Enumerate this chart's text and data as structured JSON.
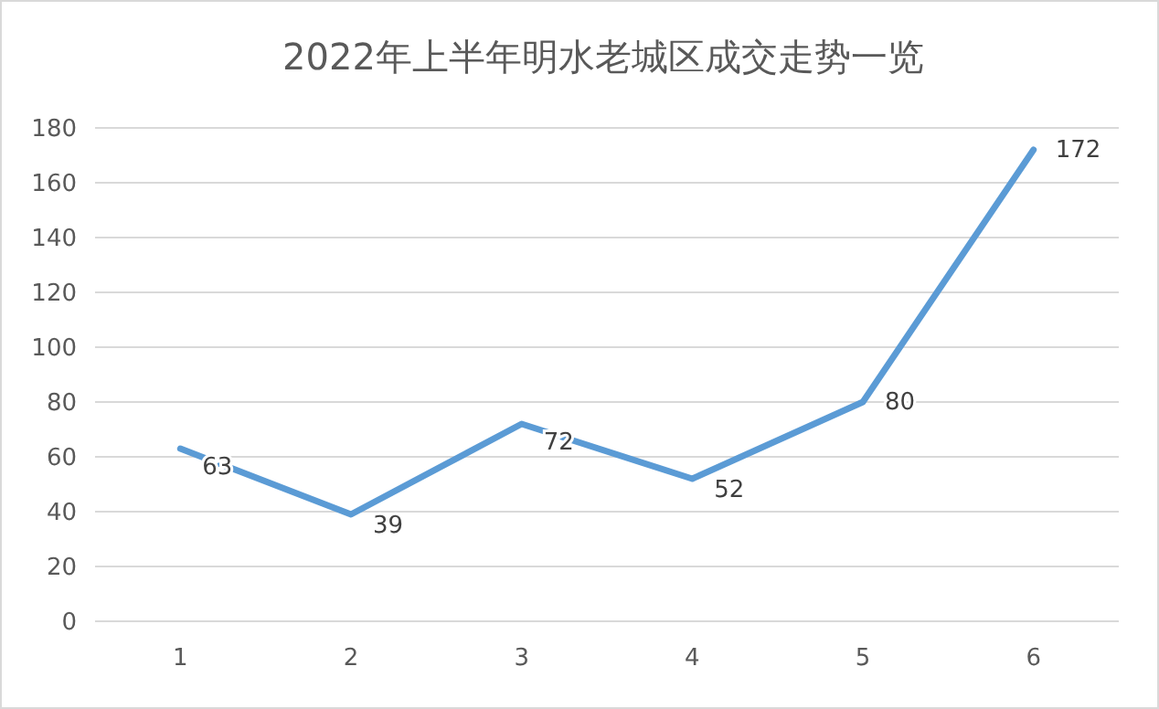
{
  "chart_data": {
    "type": "line",
    "title": "2022年上半年明水老城区成交走势一览",
    "categories": [
      "1",
      "2",
      "3",
      "4",
      "5",
      "6"
    ],
    "series": [
      {
        "color": "#5b9bd5",
        "values": [
          63,
          39,
          72,
          52,
          80,
          172
        ]
      }
    ],
    "ylim": [
      0,
      180
    ],
    "yticks": [
      0,
      20,
      40,
      60,
      80,
      100,
      120,
      140,
      160,
      180
    ],
    "grid": "y",
    "data_labels": true
  }
}
